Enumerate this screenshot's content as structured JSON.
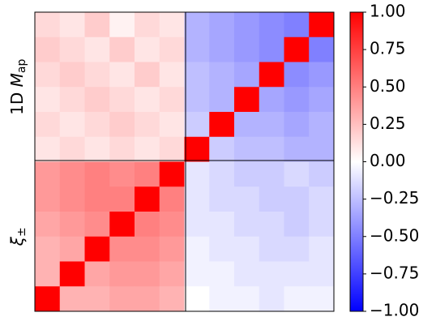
{
  "chart_data": {
    "type": "heatmap",
    "row_labels": [
      {
        "prefix": "1D",
        "var": "M",
        "sub": "ap"
      },
      {
        "var": "ξ",
        "sub": "±"
      }
    ],
    "z": [
      [
        0.15,
        0.1,
        0.2,
        0.05,
        0.15,
        0.1,
        -0.3,
        -0.35,
        -0.4,
        -0.45,
        -0.5,
        1
      ],
      [
        0.2,
        0.15,
        0.1,
        0.2,
        0.1,
        0.15,
        -0.3,
        -0.35,
        -0.4,
        -0.45,
        1,
        -0.5
      ],
      [
        0.15,
        0.2,
        0.15,
        0.1,
        0.2,
        0.1,
        -0.25,
        -0.3,
        -0.35,
        1,
        -0.45,
        -0.4
      ],
      [
        0.1,
        0.15,
        0.2,
        0.15,
        0.1,
        0.15,
        -0.25,
        -0.3,
        1,
        -0.35,
        -0.4,
        -0.35
      ],
      [
        0.15,
        0.1,
        0.15,
        0.2,
        0.15,
        0.1,
        -0.2,
        1,
        -0.3,
        -0.3,
        -0.35,
        -0.3
      ],
      [
        0.1,
        0.15,
        0.1,
        0.15,
        0.1,
        0.15,
        1,
        -0.2,
        -0.25,
        -0.25,
        -0.3,
        -0.3
      ],
      [
        0.4,
        0.45,
        0.5,
        0.45,
        0.5,
        1,
        -0.1,
        -0.15,
        -0.2,
        -0.2,
        -0.15,
        -0.2
      ],
      [
        0.4,
        0.45,
        0.5,
        0.5,
        1,
        0.5,
        -0.1,
        -0.15,
        -0.15,
        -0.2,
        -0.2,
        -0.15
      ],
      [
        0.35,
        0.4,
        0.45,
        1,
        0.5,
        0.45,
        -0.1,
        -0.1,
        -0.15,
        -0.15,
        -0.2,
        -0.15
      ],
      [
        0.3,
        0.35,
        1,
        0.45,
        0.45,
        0.4,
        -0.05,
        -0.1,
        -0.1,
        -0.15,
        -0.15,
        -0.1
      ],
      [
        0.3,
        1,
        0.35,
        0.4,
        0.4,
        0.35,
        -0.05,
        -0.05,
        -0.1,
        -0.1,
        -0.1,
        -0.1
      ],
      [
        1,
        0.3,
        0.3,
        0.35,
        0.35,
        0.3,
        0,
        -0.05,
        -0.05,
        -0.1,
        -0.05,
        -0.05
      ]
    ],
    "colormap": "bwr",
    "clim": [
      -1,
      1
    ],
    "cticks": [
      {
        "value": 1,
        "label": "1.00"
      },
      {
        "value": 0.75,
        "label": "0.75"
      },
      {
        "value": 0.5,
        "label": "0.50"
      },
      {
        "value": 0.25,
        "label": "0.25"
      },
      {
        "value": 0,
        "label": "0.00"
      },
      {
        "value": -0.25,
        "label": "−0.25"
      },
      {
        "value": -0.5,
        "label": "−0.50"
      },
      {
        "value": -0.75,
        "label": "−0.75"
      },
      {
        "value": -1,
        "label": "−1.00"
      }
    ]
  }
}
